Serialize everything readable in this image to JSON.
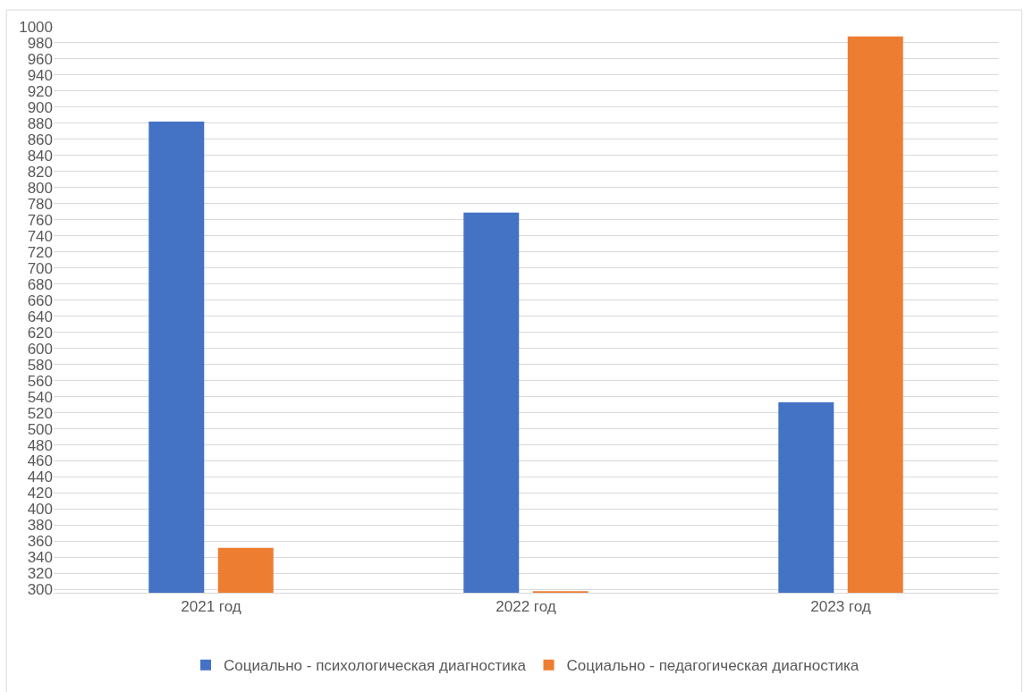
{
  "chart_data": {
    "type": "bar",
    "categories": [
      "2021 год",
      "2022 год",
      "2023 год"
    ],
    "series": [
      {
        "name": "Социально - психологическая диагностика",
        "color": "#4472c4",
        "values": [
          882,
          769,
          533
        ]
      },
      {
        "name": "Социально - педагогическая диагностика",
        "color": "#ed7d31",
        "values": [
          352,
          298,
          988
        ]
      }
    ],
    "ylim": [
      296,
      1000
    ],
    "yticks": [
      300,
      320,
      340,
      360,
      380,
      400,
      420,
      440,
      460,
      480,
      500,
      520,
      540,
      560,
      580,
      600,
      620,
      640,
      660,
      680,
      700,
      720,
      740,
      760,
      780,
      800,
      820,
      840,
      860,
      880,
      900,
      920,
      940,
      960,
      980,
      1000
    ],
    "grid": "y",
    "legend": "bottom"
  }
}
